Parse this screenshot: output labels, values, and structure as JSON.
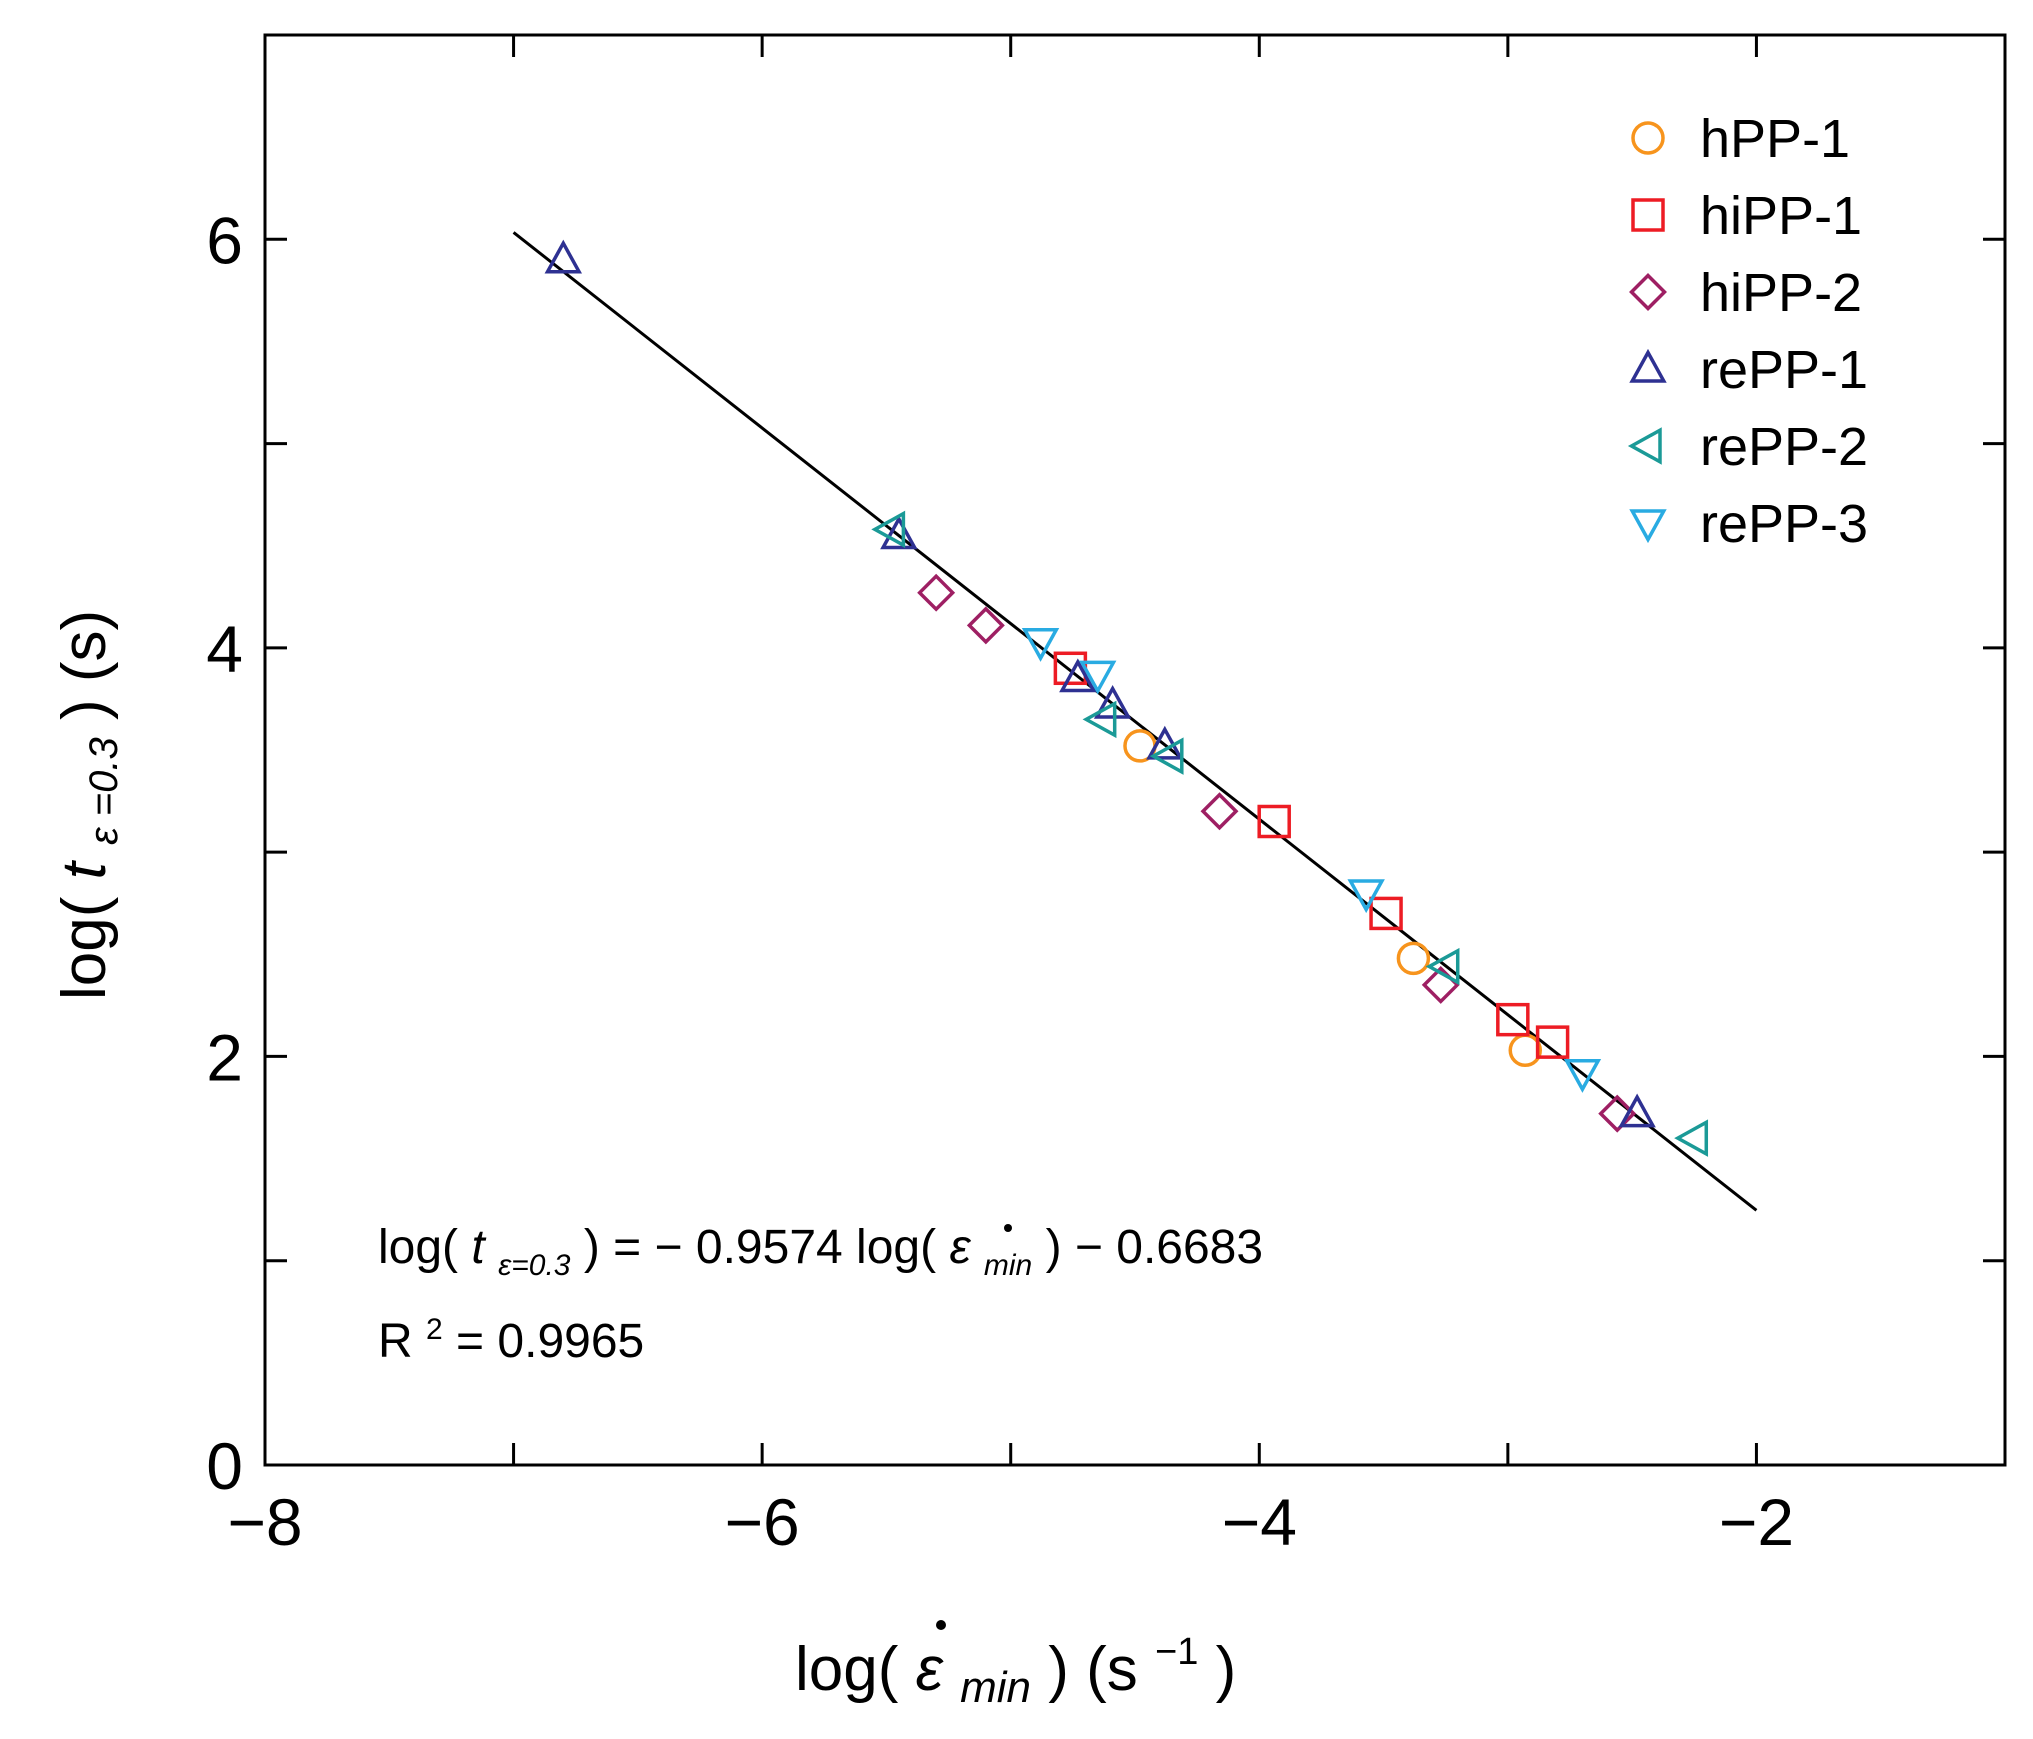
{
  "chart_data": {
    "type": "scatter",
    "xlabel": "log(ε̇ min ) (s-1)",
    "ylabel": "log(t ε =0.3 ) (s)",
    "xlim": [
      -8,
      -1
    ],
    "ylim": [
      0,
      7
    ],
    "x_ticks": [
      -8,
      -6,
      -4,
      -2
    ],
    "y_ticks": [
      0,
      2,
      4,
      6
    ],
    "x_tick_labels": [
      "−8",
      "−6",
      "−4",
      "−2"
    ],
    "y_tick_labels": [
      "0",
      "2",
      "4",
      "6"
    ],
    "legend_position": "top-right",
    "series": [
      {
        "name": "hPP-1",
        "marker": "circle",
        "color": "#f7941d",
        "x": [
          -4.48,
          -3.38,
          -2.93
        ],
        "y": [
          3.52,
          2.48,
          2.03
        ]
      },
      {
        "name": "hiPP-1",
        "marker": "square",
        "color": "#ed1c24",
        "x": [
          -4.76,
          -3.94,
          -3.49,
          -2.98,
          -2.82
        ],
        "y": [
          3.9,
          3.15,
          2.7,
          2.18,
          2.07
        ]
      },
      {
        "name": "hiPP-2",
        "marker": "diamond",
        "color": "#9e1f63",
        "x": [
          -5.3,
          -5.1,
          -4.16,
          -3.27,
          -2.56
        ],
        "y": [
          4.27,
          4.11,
          3.2,
          2.35,
          1.72
        ]
      },
      {
        "name": "rePP-1",
        "marker": "triangle-up",
        "color": "#2e3192",
        "x": [
          -6.8,
          -5.45,
          -4.73,
          -4.59,
          -4.38,
          -2.48
        ],
        "y": [
          5.9,
          4.55,
          3.85,
          3.72,
          3.52,
          1.72
        ]
      },
      {
        "name": "rePP-2",
        "marker": "triangle-left",
        "color": "#1b9a97",
        "x": [
          -5.48,
          -4.63,
          -4.36,
          -3.25,
          -2.25
        ],
        "y": [
          4.58,
          3.65,
          3.47,
          2.44,
          1.6
        ]
      },
      {
        "name": "rePP-3",
        "marker": "triangle-down",
        "color": "#29abe2",
        "x": [
          -4.88,
          -4.65,
          -3.57,
          -2.7
        ],
        "y": [
          4.03,
          3.87,
          2.8,
          1.92
        ]
      }
    ],
    "fit_line": {
      "slope": -0.9574,
      "intercept": -0.6683,
      "x_range": [
        -7,
        -2
      ]
    },
    "annotations": {
      "equation_prefix": "log(",
      "equation_t": "t",
      "equation_t_sub": "ε=0.3",
      "equation_mid": ") = − 0.9574 log(",
      "equation_eps": "ε",
      "equation_eps_sub": "min",
      "equation_suffix": ") − 0.6683",
      "r2_prefix": "R",
      "r2_sup": "2",
      "r2_suffix": "= 0.9965"
    },
    "axis_title_parts": {
      "x_prefix": "log(",
      "x_eps": "ε",
      "x_sub": "min",
      "x_mid": ")  (s",
      "x_sup": "−1",
      "x_suffix": ")",
      "y_prefix": "log(",
      "y_t": "t",
      "y_sub": "ε =0.3",
      "y_suffix": ")   (s)"
    }
  }
}
